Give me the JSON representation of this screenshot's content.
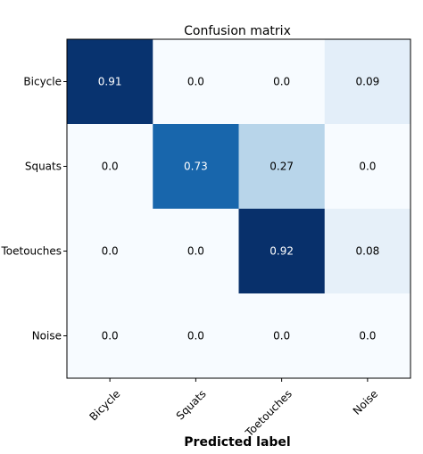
{
  "chart_data": {
    "type": "heatmap",
    "title": "Confusion matrix",
    "xlabel": "Predicted label",
    "ylabel": "",
    "x_categories": [
      "Bicycle",
      "Squats",
      "Toetouches",
      "Noise"
    ],
    "y_categories": [
      "Bicycle",
      "Squats",
      "Toetouches",
      "Noise"
    ],
    "values": [
      [
        0.91,
        0.0,
        0.0,
        0.09
      ],
      [
        0.0,
        0.73,
        0.27,
        0.0
      ],
      [
        0.0,
        0.0,
        0.92,
        0.08
      ],
      [
        0.0,
        0.0,
        0.0,
        0.0
      ]
    ],
    "value_labels": [
      [
        "0.91",
        "0.0",
        "0.0",
        "0.09"
      ],
      [
        "0.0",
        "0.73",
        "0.27",
        "0.0"
      ],
      [
        "0.0",
        "0.0",
        "0.92",
        "0.08"
      ],
      [
        "0.0",
        "0.0",
        "0.0",
        "0.0"
      ]
    ],
    "colormap": "Blues",
    "x_tick_rotation": 45,
    "grid": false,
    "legend": "none"
  }
}
